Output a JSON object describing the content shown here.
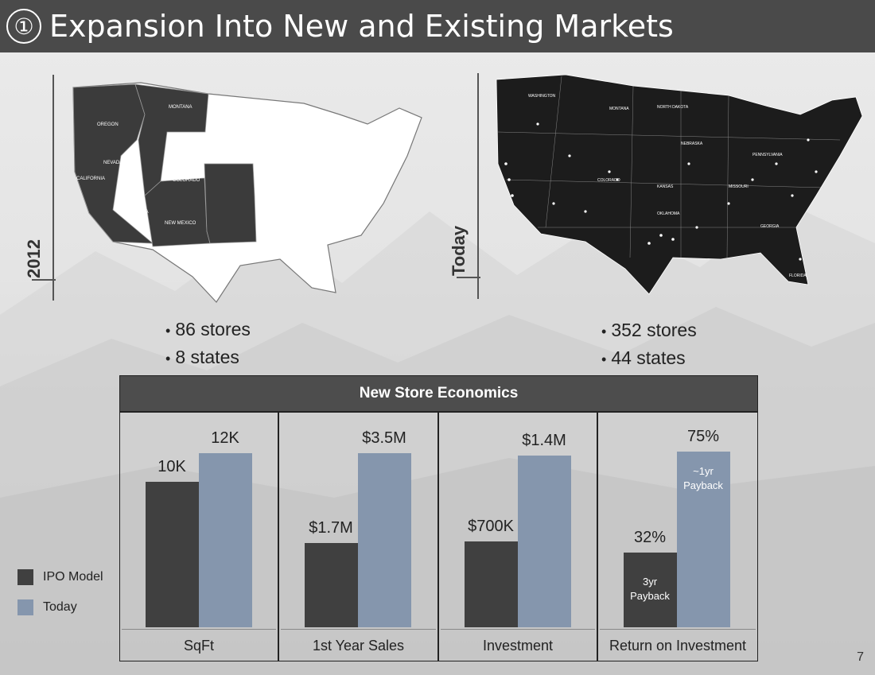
{
  "slide": {
    "title_number": "①",
    "title": "Expansion Into New and Existing Markets",
    "page_number": "7"
  },
  "map_2012": {
    "label": "2012",
    "bullets": [
      "86 stores",
      "8 states"
    ]
  },
  "map_today": {
    "label": "Today",
    "bullets": [
      "352 stores",
      "44 states"
    ]
  },
  "colors": {
    "ipo": "#404040",
    "today": "#8596ad",
    "header": "#4d4d4d"
  },
  "chart_data": {
    "type": "bar",
    "title": "New Store Economics",
    "legend": {
      "placement": "left",
      "entries": [
        "IPO Model",
        "Today"
      ]
    },
    "series_names": [
      "IPO Model",
      "Today"
    ],
    "panels": [
      {
        "category": "SqFt",
        "values": [
          10,
          12
        ],
        "labels": [
          "10K",
          "12K"
        ],
        "ylim": [
          0,
          14
        ]
      },
      {
        "category": "1st Year Sales",
        "values": [
          1.7,
          3.5
        ],
        "labels": [
          "$1.7M",
          "$3.5M"
        ],
        "ylim": [
          0,
          4.1
        ]
      },
      {
        "category": "Investment",
        "values": [
          0.7,
          1.4
        ],
        "labels": [
          "$700K",
          "$1.4M"
        ],
        "ylim": [
          0,
          1.66
        ]
      },
      {
        "category": "Return on Investment",
        "values": [
          32,
          75
        ],
        "labels": [
          "32%",
          "75%"
        ],
        "ylim": [
          0,
          87
        ],
        "annotations": [
          "3yr\nPayback",
          "~1yr\nPayback"
        ]
      }
    ]
  }
}
